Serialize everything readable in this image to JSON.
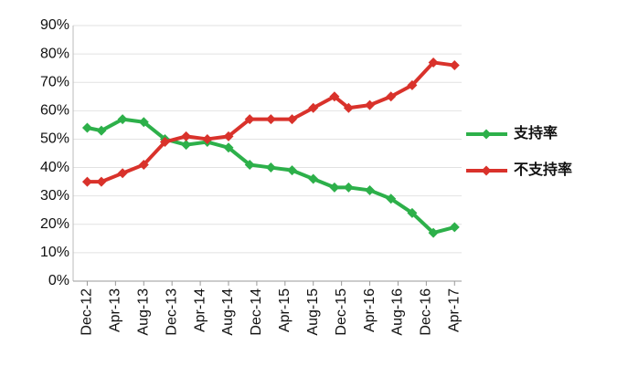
{
  "chart_data": {
    "type": "line",
    "x": [
      0,
      2,
      5,
      8,
      11,
      14,
      17,
      20,
      23,
      26,
      29,
      32,
      35,
      37,
      40,
      43,
      46,
      49,
      52
    ],
    "xlim": [
      -2,
      53
    ],
    "xticks": [
      {
        "value": 0,
        "label": "Dec-12"
      },
      {
        "value": 4,
        "label": "Apr-13"
      },
      {
        "value": 8,
        "label": "Aug-13"
      },
      {
        "value": 12,
        "label": "Dec-13"
      },
      {
        "value": 16,
        "label": "Apr-14"
      },
      {
        "value": 20,
        "label": "Aug-14"
      },
      {
        "value": 24,
        "label": "Dec-14"
      },
      {
        "value": 28,
        "label": "Apr-15"
      },
      {
        "value": 32,
        "label": "Aug-15"
      },
      {
        "value": 36,
        "label": "Dec-15"
      },
      {
        "value": 40,
        "label": "Apr-16"
      },
      {
        "value": 44,
        "label": "Aug-16"
      },
      {
        "value": 48,
        "label": "Dec-16"
      },
      {
        "value": 52,
        "label": "Apr-17"
      }
    ],
    "ylim": [
      0,
      90
    ],
    "yticks": [
      {
        "value": 0,
        "label": "0%"
      },
      {
        "value": 10,
        "label": "10%"
      },
      {
        "value": 20,
        "label": "20%"
      },
      {
        "value": 30,
        "label": "30%"
      },
      {
        "value": 40,
        "label": "40%"
      },
      {
        "value": 50,
        "label": "50%"
      },
      {
        "value": 60,
        "label": "60%"
      },
      {
        "value": 70,
        "label": "70%"
      },
      {
        "value": 80,
        "label": "80%"
      },
      {
        "value": 90,
        "label": "90%"
      }
    ],
    "grid": true,
    "legend": "right",
    "series": [
      {
        "name": "支持率",
        "color": "#2db04a",
        "values": [
          54,
          53,
          57,
          56,
          50,
          48,
          49,
          47,
          41,
          40,
          39,
          36,
          33,
          33,
          32,
          29,
          24,
          17,
          19
        ]
      },
      {
        "name": "不支持率",
        "color": "#d9322b",
        "values": [
          35,
          35,
          38,
          41,
          49,
          51,
          50,
          51,
          57,
          57,
          57,
          61,
          65,
          61,
          62,
          65,
          69,
          77,
          76
        ]
      }
    ]
  }
}
